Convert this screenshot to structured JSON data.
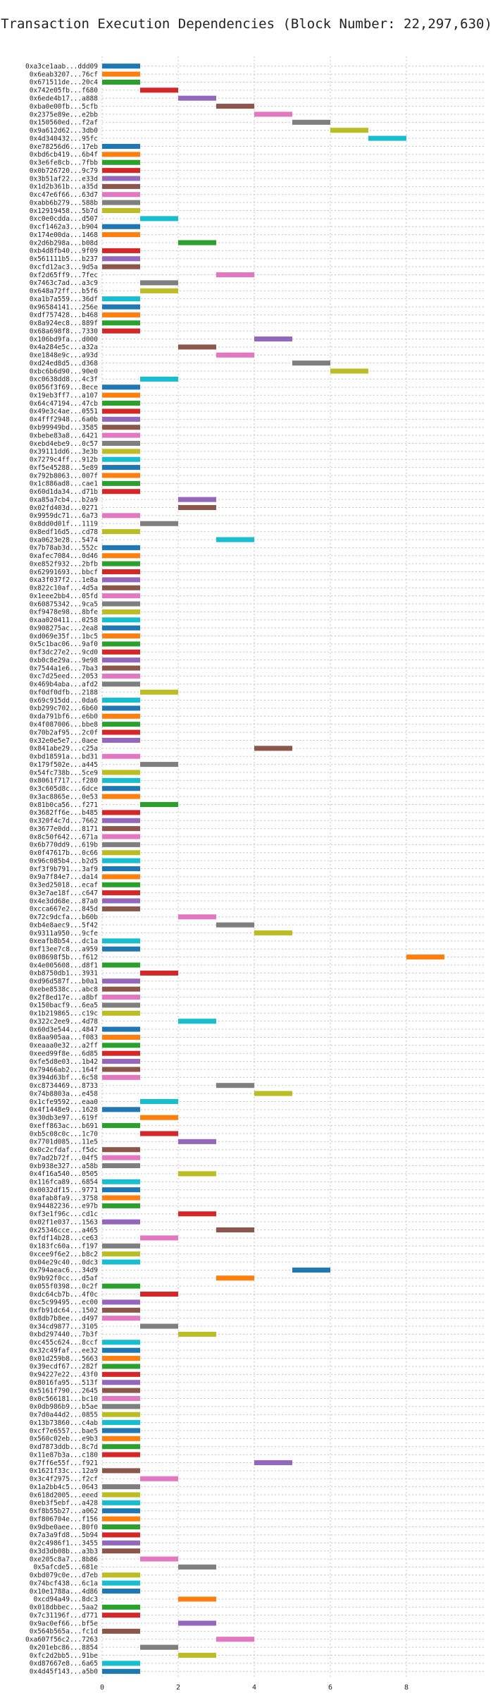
{
  "chart_data": {
    "type": "bar",
    "orientation": "horizontal-gantt",
    "title": "Transaction Execution Dependencies (Block Number: 22,297,630)",
    "xlabel": "",
    "ylabel": "",
    "xlim": [
      0,
      9.2
    ],
    "x_ticks": [
      0,
      2,
      4,
      6,
      8
    ],
    "grid": true,
    "palette": [
      "#1f77b4",
      "#ff7f0e",
      "#2ca02c",
      "#d62728",
      "#9467bd",
      "#8c564b",
      "#e377c2",
      "#7f7f7f",
      "#bcbd22",
      "#17becf"
    ],
    "transactions": [
      {
        "label": "0xa3ce1aab...ddd09",
        "start": 0,
        "end": 1
      },
      {
        "label": "0x6eab3207...76cf",
        "start": 0,
        "end": 1
      },
      {
        "label": "0x671511de...20c4",
        "start": 0,
        "end": 1
      },
      {
        "label": "0x742e05fb...f680",
        "start": 1,
        "end": 2
      },
      {
        "label": "0x6ede4b17...a888",
        "start": 2,
        "end": 3
      },
      {
        "label": "0xba0e00fb...5cfb",
        "start": 3,
        "end": 4
      },
      {
        "label": "0x2375e89e...e2bb",
        "start": 4,
        "end": 5
      },
      {
        "label": "0x150560ed...f2af",
        "start": 5,
        "end": 6
      },
      {
        "label": "0x9a612d62...3db0",
        "start": 6,
        "end": 7
      },
      {
        "label": "0x4d340432...95fc",
        "start": 7,
        "end": 8
      },
      {
        "label": "0xe78256d6...17eb",
        "start": 0,
        "end": 1
      },
      {
        "label": "0xbd6cb419...6b4f",
        "start": 0,
        "end": 1
      },
      {
        "label": "0x3e6fe8cb...7fbb",
        "start": 0,
        "end": 1
      },
      {
        "label": "0x0b726720...9c79",
        "start": 0,
        "end": 1
      },
      {
        "label": "0x3b51af22...e33d",
        "start": 0,
        "end": 1
      },
      {
        "label": "0x1d2b361b...a35d",
        "start": 0,
        "end": 1
      },
      {
        "label": "0xc47e6f66...63d7",
        "start": 0,
        "end": 1
      },
      {
        "label": "0xabb6b279...588b",
        "start": 0,
        "end": 1
      },
      {
        "label": "0x12919458...5b7d",
        "start": 0,
        "end": 1
      },
      {
        "label": "0xc0e0cdda...d507",
        "start": 1,
        "end": 2
      },
      {
        "label": "0xcf1462a3...b904",
        "start": 0,
        "end": 1
      },
      {
        "label": "0x174e00da...1468",
        "start": 0,
        "end": 1
      },
      {
        "label": "0x2d6b298a...b08d",
        "start": 2,
        "end": 3
      },
      {
        "label": "0xb4d8fb40...9f09",
        "start": 0,
        "end": 1
      },
      {
        "label": "0x561111b5...b237",
        "start": 0,
        "end": 1
      },
      {
        "label": "0xcfd12ac3...9d5a",
        "start": 0,
        "end": 1
      },
      {
        "label": "0xf2d65ff9...7fec",
        "start": 3,
        "end": 4
      },
      {
        "label": "0x7463c7ad...a3c9",
        "start": 1,
        "end": 2
      },
      {
        "label": "0x648a72ff...b5f6",
        "start": 1,
        "end": 2
      },
      {
        "label": "0xa1b7a559...36df",
        "start": 0,
        "end": 1
      },
      {
        "label": "0x96584141...256e",
        "start": 0,
        "end": 1
      },
      {
        "label": "0xdf757428...b468",
        "start": 0,
        "end": 1
      },
      {
        "label": "0x8a924ec8...889f",
        "start": 0,
        "end": 1
      },
      {
        "label": "0x68a698f8...7330",
        "start": 0,
        "end": 1
      },
      {
        "label": "0x106bd9fa...d000",
        "start": 4,
        "end": 5
      },
      {
        "label": "0x4a284e5c...a32a",
        "start": 2,
        "end": 3
      },
      {
        "label": "0xe1848e9c...a93d",
        "start": 3,
        "end": 4
      },
      {
        "label": "0xd24ed8d5...d368",
        "start": 5,
        "end": 6
      },
      {
        "label": "0xbc6b6d90...90e0",
        "start": 6,
        "end": 7
      },
      {
        "label": "0xc0638dd8...4c3f",
        "start": 1,
        "end": 2
      },
      {
        "label": "0x056f3f69...8ece",
        "start": 0,
        "end": 1
      },
      {
        "label": "0x19eb3ff7...a107",
        "start": 0,
        "end": 1
      },
      {
        "label": "0x64c47194...47cb",
        "start": 0,
        "end": 1
      },
      {
        "label": "0x49e3c4ae...0551",
        "start": 0,
        "end": 1
      },
      {
        "label": "0x4fff2948...6a0b",
        "start": 0,
        "end": 1
      },
      {
        "label": "0xb99949bd...3585",
        "start": 0,
        "end": 1
      },
      {
        "label": "0xbebe83a8...6421",
        "start": 0,
        "end": 1
      },
      {
        "label": "0xebd4ebe9...0c57",
        "start": 0,
        "end": 1
      },
      {
        "label": "0x39111dd6...3e3b",
        "start": 0,
        "end": 1
      },
      {
        "label": "0x7279c4ff...912b",
        "start": 0,
        "end": 1
      },
      {
        "label": "0xf5e45288...5e89",
        "start": 0,
        "end": 1
      },
      {
        "label": "0x792b8063...007f",
        "start": 0,
        "end": 1
      },
      {
        "label": "0x1c886ad8...cae1",
        "start": 0,
        "end": 1
      },
      {
        "label": "0x60d1da34...d71b",
        "start": 0,
        "end": 1
      },
      {
        "label": "0xa85a7cb4...b2a9",
        "start": 2,
        "end": 3
      },
      {
        "label": "0x02fd403d...0271",
        "start": 2,
        "end": 3
      },
      {
        "label": "0x9959dc71...6a73",
        "start": 0,
        "end": 1
      },
      {
        "label": "0x8dd0d01f...1119",
        "start": 1,
        "end": 2
      },
      {
        "label": "0x8edf16d5...cd78",
        "start": 0,
        "end": 1
      },
      {
        "label": "0xa0623e28...5474",
        "start": 3,
        "end": 4
      },
      {
        "label": "0x7b78ab3d...552c",
        "start": 0,
        "end": 1
      },
      {
        "label": "0xafec7084...0d46",
        "start": 0,
        "end": 1
      },
      {
        "label": "0xe852f932...2bfb",
        "start": 0,
        "end": 1
      },
      {
        "label": "0x62991693...bbcf",
        "start": 0,
        "end": 1
      },
      {
        "label": "0xa3f037f2...1e8a",
        "start": 0,
        "end": 1
      },
      {
        "label": "0x822c10af...4d5a",
        "start": 0,
        "end": 1
      },
      {
        "label": "0x1eee2bb4...05fd",
        "start": 0,
        "end": 1
      },
      {
        "label": "0x60875342...9ca5",
        "start": 0,
        "end": 1
      },
      {
        "label": "0xf9478e98...8bfe",
        "start": 0,
        "end": 1
      },
      {
        "label": "0xaa020411...0258",
        "start": 0,
        "end": 1
      },
      {
        "label": "0x908275ac...2ea8",
        "start": 0,
        "end": 1
      },
      {
        "label": "0xd069e35f...1bc5",
        "start": 0,
        "end": 1
      },
      {
        "label": "0x5c1bac06...9af0",
        "start": 0,
        "end": 1
      },
      {
        "label": "0xf3dc27e2...9cd0",
        "start": 0,
        "end": 1
      },
      {
        "label": "0xb0c8e29a...9e98",
        "start": 0,
        "end": 1
      },
      {
        "label": "0x7544a1e6...7ba3",
        "start": 0,
        "end": 1
      },
      {
        "label": "0xc7d25eed...2053",
        "start": 0,
        "end": 1
      },
      {
        "label": "0x469b4aba...afd2",
        "start": 0,
        "end": 1
      },
      {
        "label": "0xf0df0dfb...2188",
        "start": 1,
        "end": 2
      },
      {
        "label": "0x69c915dd...0da6",
        "start": 0,
        "end": 1
      },
      {
        "label": "0xb299c702...6b60",
        "start": 0,
        "end": 1
      },
      {
        "label": "0xda791bf6...e6b0",
        "start": 0,
        "end": 1
      },
      {
        "label": "0x4f087006...bbe8",
        "start": 0,
        "end": 1
      },
      {
        "label": "0x70b2af95...2c0f",
        "start": 0,
        "end": 1
      },
      {
        "label": "0x32e0e5e7...0aee",
        "start": 0,
        "end": 1
      },
      {
        "label": "0x841abe29...c25a",
        "start": 4,
        "end": 5
      },
      {
        "label": "0xbd18591a...bd31",
        "start": 0,
        "end": 1
      },
      {
        "label": "0x179f502e...a445",
        "start": 1,
        "end": 2
      },
      {
        "label": "0x54fc738b...5ce9",
        "start": 0,
        "end": 1
      },
      {
        "label": "0x8061f717...f280",
        "start": 0,
        "end": 1
      },
      {
        "label": "0x3c605d8c...6dce",
        "start": 0,
        "end": 1
      },
      {
        "label": "0x3ac8865e...0e53",
        "start": 0,
        "end": 1
      },
      {
        "label": "0x81b0ca56...f271",
        "start": 1,
        "end": 2
      },
      {
        "label": "0x3682ff6e...b485",
        "start": 0,
        "end": 1
      },
      {
        "label": "0x320f4c7d...7662",
        "start": 0,
        "end": 1
      },
      {
        "label": "0x3677e0dd...8171",
        "start": 0,
        "end": 1
      },
      {
        "label": "0x8c50f642...671a",
        "start": 0,
        "end": 1
      },
      {
        "label": "0x6b770dd9...619b",
        "start": 0,
        "end": 1
      },
      {
        "label": "0x0f47617b...0c66",
        "start": 0,
        "end": 1
      },
      {
        "label": "0x96c085b4...b2d5",
        "start": 0,
        "end": 1
      },
      {
        "label": "0xf3f9b791...3af9",
        "start": 0,
        "end": 1
      },
      {
        "label": "0x9a7f84e7...da14",
        "start": 0,
        "end": 1
      },
      {
        "label": "0x3ed25018...ecaf",
        "start": 0,
        "end": 1
      },
      {
        "label": "0x3e7ae18f...c647",
        "start": 0,
        "end": 1
      },
      {
        "label": "0x4e3dd68e...87a0",
        "start": 0,
        "end": 1
      },
      {
        "label": "0xcca667e2...845d",
        "start": 0,
        "end": 1
      },
      {
        "label": "0x72c9dcfa...b60b",
        "start": 2,
        "end": 3
      },
      {
        "label": "0xb4e8aec9...5f42",
        "start": 3,
        "end": 4
      },
      {
        "label": "0x9311a950...9cfe",
        "start": 4,
        "end": 5
      },
      {
        "label": "0xeafb8b54...dc1a",
        "start": 0,
        "end": 1
      },
      {
        "label": "0xf13ee7c8...a959",
        "start": 0,
        "end": 1
      },
      {
        "label": "0x08698f5b...f612",
        "start": 8,
        "end": 9
      },
      {
        "label": "0x4e005608...d8f1",
        "start": 0,
        "end": 1
      },
      {
        "label": "0xb8750db1...3931",
        "start": 1,
        "end": 2
      },
      {
        "label": "0xd96d587f...b0a1",
        "start": 0,
        "end": 1
      },
      {
        "label": "0xebe8538c...abc8",
        "start": 0,
        "end": 1
      },
      {
        "label": "0x2f8ed17e...a8bf",
        "start": 0,
        "end": 1
      },
      {
        "label": "0x150bacf9...6ea5",
        "start": 0,
        "end": 1
      },
      {
        "label": "0x1b219865...c19c",
        "start": 0,
        "end": 1
      },
      {
        "label": "0x322c2ee9...4d78",
        "start": 2,
        "end": 3
      },
      {
        "label": "0x60d3e544...4847",
        "start": 0,
        "end": 1
      },
      {
        "label": "0x8aa905aa...f083",
        "start": 0,
        "end": 1
      },
      {
        "label": "0xeaaa0e32...a2ff",
        "start": 0,
        "end": 1
      },
      {
        "label": "0xeed99f8e...6d85",
        "start": 0,
        "end": 1
      },
      {
        "label": "0xfe5d8e03...1b42",
        "start": 0,
        "end": 1
      },
      {
        "label": "0x79466ab2...164f",
        "start": 0,
        "end": 1
      },
      {
        "label": "0x394d63bf...6c58",
        "start": 0,
        "end": 1
      },
      {
        "label": "0xc8734469...8733",
        "start": 3,
        "end": 4
      },
      {
        "label": "0x74b8803a...e458",
        "start": 4,
        "end": 5
      },
      {
        "label": "0x1cfe9592...eaa0",
        "start": 1,
        "end": 2
      },
      {
        "label": "0x4f1448e9...1628",
        "start": 0,
        "end": 1
      },
      {
        "label": "0x30db3e97...619f",
        "start": 1,
        "end": 2
      },
      {
        "label": "0xeff863ac...b691",
        "start": 0,
        "end": 1
      },
      {
        "label": "0xb5c08c0c...1c70",
        "start": 1,
        "end": 2
      },
      {
        "label": "0x7701d085...11e5",
        "start": 2,
        "end": 3
      },
      {
        "label": "0x0c2cfdaf...f5dc",
        "start": 0,
        "end": 1
      },
      {
        "label": "0x7ad2b72f...04f5",
        "start": 0,
        "end": 1
      },
      {
        "label": "0xb938e327...a58b",
        "start": 0,
        "end": 1
      },
      {
        "label": "0x4f16a540...0505",
        "start": 2,
        "end": 3
      },
      {
        "label": "0x116fca89...6854",
        "start": 0,
        "end": 1
      },
      {
        "label": "0x0032df15...9771",
        "start": 0,
        "end": 1
      },
      {
        "label": "0xafab8fa9...3758",
        "start": 0,
        "end": 1
      },
      {
        "label": "0x94482236...e97b",
        "start": 0,
        "end": 1
      },
      {
        "label": "0xf3e1f96c...cd1c",
        "start": 2,
        "end": 3
      },
      {
        "label": "0x02f1e037...1563",
        "start": 0,
        "end": 1
      },
      {
        "label": "0x25346cce...a465",
        "start": 3,
        "end": 4
      },
      {
        "label": "0xfdf14b28...ce63",
        "start": 1,
        "end": 2
      },
      {
        "label": "0x183fc60a...f197",
        "start": 0,
        "end": 1
      },
      {
        "label": "0xcee9f6e2...b8c2",
        "start": 0,
        "end": 1
      },
      {
        "label": "0x04e29c40...0dc3",
        "start": 0,
        "end": 1
      },
      {
        "label": "0x794aeac6...34d9",
        "start": 5,
        "end": 6
      },
      {
        "label": "0x9b92f0cc...d5af",
        "start": 3,
        "end": 4
      },
      {
        "label": "0x055f0398...0c2f",
        "start": 0,
        "end": 1
      },
      {
        "label": "0xdc64cb7b...4f0c",
        "start": 1,
        "end": 2
      },
      {
        "label": "0xc5c99495...ec00",
        "start": 0,
        "end": 1
      },
      {
        "label": "0xfb91dc64...1502",
        "start": 0,
        "end": 1
      },
      {
        "label": "0x8db7b8ee...d497",
        "start": 0,
        "end": 1
      },
      {
        "label": "0x34cd9877...3105",
        "start": 1,
        "end": 2
      },
      {
        "label": "0xbd297440...7b3f",
        "start": 2,
        "end": 3
      },
      {
        "label": "0xc455c624...8ccf",
        "start": 0,
        "end": 1
      },
      {
        "label": "0x32c49faf...ee32",
        "start": 0,
        "end": 1
      },
      {
        "label": "0x01d259b8...5663",
        "start": 0,
        "end": 1
      },
      {
        "label": "0x39ecdf67...282f",
        "start": 0,
        "end": 1
      },
      {
        "label": "0x94227e22...43f0",
        "start": 0,
        "end": 1
      },
      {
        "label": "0x8016fa95...513f",
        "start": 0,
        "end": 1
      },
      {
        "label": "0x5161f790...2645",
        "start": 0,
        "end": 1
      },
      {
        "label": "0x0c566181...bc10",
        "start": 0,
        "end": 1
      },
      {
        "label": "0x0db986b9...b5ae",
        "start": 0,
        "end": 1
      },
      {
        "label": "0x7d0a44d2...0855",
        "start": 0,
        "end": 1
      },
      {
        "label": "0x13b73860...c4ab",
        "start": 0,
        "end": 1
      },
      {
        "label": "0xcf7e6557...bae5",
        "start": 0,
        "end": 1
      },
      {
        "label": "0x560c02eb...e9b3",
        "start": 0,
        "end": 1
      },
      {
        "label": "0xd7873ddb...8c7d",
        "start": 0,
        "end": 1
      },
      {
        "label": "0x11e87b3a...c180",
        "start": 0,
        "end": 1
      },
      {
        "label": "0x7ff6e55f...f921",
        "start": 4,
        "end": 5
      },
      {
        "label": "0x1621f33c...12a9",
        "start": 0,
        "end": 1
      },
      {
        "label": "0x3c4f2975...f2cf",
        "start": 1,
        "end": 2
      },
      {
        "label": "0x1a2bb4c5...0643",
        "start": 0,
        "end": 1
      },
      {
        "label": "0x618d2005...eeed",
        "start": 0,
        "end": 1
      },
      {
        "label": "0xeb3f5ebf...a428",
        "start": 0,
        "end": 1
      },
      {
        "label": "0xf8b55b27...a062",
        "start": 0,
        "end": 1
      },
      {
        "label": "0xf806704e...f156",
        "start": 0,
        "end": 1
      },
      {
        "label": "0x9dbe0aee...80f0",
        "start": 0,
        "end": 1
      },
      {
        "label": "0x7a3a9fd8...5b94",
        "start": 0,
        "end": 1
      },
      {
        "label": "0x2c4986f1...3455",
        "start": 0,
        "end": 1
      },
      {
        "label": "0x3d3db08b...a3b3",
        "start": 0,
        "end": 1
      },
      {
        "label": "0xe205c8a7...8b86",
        "start": 1,
        "end": 2
      },
      {
        "label": "0x5afcde5...681e",
        "start": 2,
        "end": 3
      },
      {
        "label": "0xbd079c0e...d7eb",
        "start": 0,
        "end": 1
      },
      {
        "label": "0x74bcf438...6c1a",
        "start": 0,
        "end": 1
      },
      {
        "label": "0x10e1788a...4d86",
        "start": 0,
        "end": 1
      },
      {
        "label": "0xcd94a49...8dc3",
        "start": 2,
        "end": 3
      },
      {
        "label": "0x018dbbec...5aa2",
        "start": 0,
        "end": 1
      },
      {
        "label": "0x7c31196f...d771",
        "start": 0,
        "end": 1
      },
      {
        "label": "0x9ac0ef66...bf5e",
        "start": 2,
        "end": 3
      },
      {
        "label": "0x564b565a...fc1d",
        "start": 0,
        "end": 1
      },
      {
        "label": "0xa607f56c2...7263",
        "start": 3,
        "end": 4
      },
      {
        "label": "0x201ebc86...8854",
        "start": 1,
        "end": 2
      },
      {
        "label": "0xfc2d2bb5...91be",
        "start": 2,
        "end": 3
      },
      {
        "label": "0xd87667e8...6a65",
        "start": 0,
        "end": 1
      },
      {
        "label": "0x4d45f143...a5b0",
        "start": 0,
        "end": 1
      }
    ]
  }
}
